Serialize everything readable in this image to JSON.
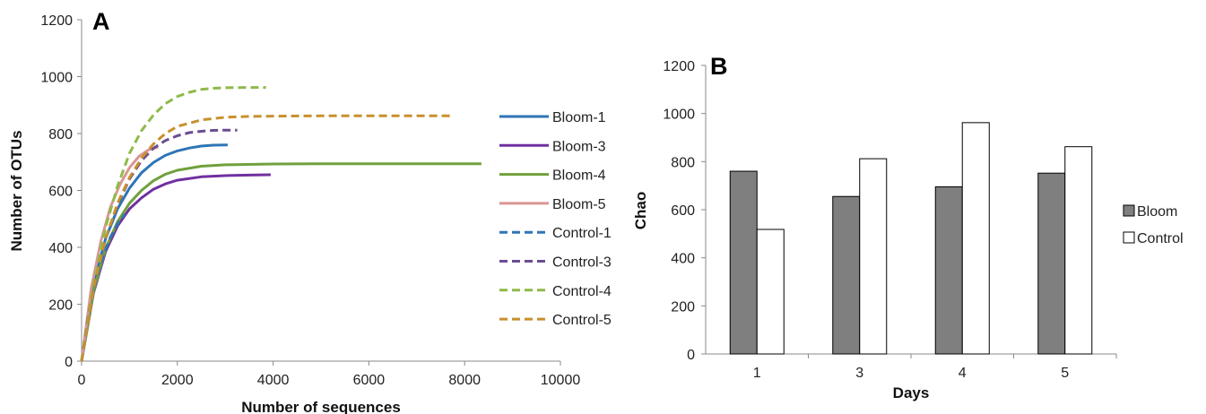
{
  "chart_data": [
    {
      "type": "line",
      "panel_label": "A",
      "xlabel": "Number of sequences",
      "ylabel": "Number of OTUs",
      "xlim": [
        0,
        10000
      ],
      "ylim": [
        0,
        1200
      ],
      "xticks": [
        "0",
        "2000",
        "4000",
        "6000",
        "8000",
        "10000"
      ],
      "yticks": [
        "0",
        "200",
        "400",
        "600",
        "800",
        "1000",
        "1200"
      ],
      "grid": false,
      "legend_position": "right",
      "series": [
        {
          "name": "Bloom-1",
          "color": "#2e75b6",
          "dash": "solid",
          "x": [
            0,
            250,
            500,
            750,
            1000,
            1250,
            1500,
            1750,
            2000,
            2250,
            2500,
            2750,
            3050
          ],
          "y": [
            0,
            270,
            430,
            535,
            608,
            662,
            698,
            723,
            739,
            749,
            756,
            759,
            760
          ]
        },
        {
          "name": "Bloom-3",
          "color": "#7030a0",
          "dash": "solid",
          "x": [
            0,
            250,
            500,
            750,
            1000,
            1250,
            1500,
            1750,
            2000,
            2500,
            3000,
            3500,
            3950
          ],
          "y": [
            0,
            240,
            385,
            475,
            535,
            574,
            604,
            623,
            636,
            648,
            652,
            654,
            655
          ]
        },
        {
          "name": "Bloom-4",
          "color": "#70a03c",
          "dash": "solid",
          "x": [
            0,
            250,
            500,
            750,
            1000,
            1250,
            1500,
            1750,
            2000,
            2500,
            3000,
            4000,
            5000,
            6000,
            7000,
            8350
          ],
          "y": [
            0,
            245,
            395,
            490,
            555,
            600,
            634,
            657,
            671,
            685,
            690,
            693,
            694,
            694,
            694,
            694
          ]
        },
        {
          "name": "Bloom-5",
          "color": "#d99694",
          "dash": "solid",
          "x": [
            0,
            200,
            400,
            600,
            800,
            1000,
            1200,
            1400,
            1600
          ],
          "y": [
            0,
            255,
            420,
            540,
            620,
            680,
            720,
            743,
            752
          ]
        },
        {
          "name": "Control-1",
          "color": "#2e75b6",
          "dash": "dashed",
          "x": [
            0,
            150,
            300,
            450,
            600,
            750,
            900
          ],
          "y": [
            0,
            170,
            285,
            370,
            435,
            482,
            517
          ]
        },
        {
          "name": "Control-3",
          "color": "#6a4c93",
          "dash": "dashed",
          "x": [
            0,
            250,
            500,
            750,
            1000,
            1250,
            1500,
            1750,
            2000,
            2250,
            2500,
            2750,
            3000,
            3250
          ],
          "y": [
            0,
            260,
            430,
            550,
            640,
            705,
            748,
            775,
            792,
            803,
            808,
            811,
            812,
            812
          ]
        },
        {
          "name": "Control-4",
          "color": "#8fba4a",
          "dash": "dashed",
          "x": [
            0,
            250,
            500,
            750,
            1000,
            1250,
            1500,
            1750,
            2000,
            2250,
            2500,
            2750,
            3000,
            3500,
            3850
          ],
          "y": [
            0,
            270,
            470,
            615,
            730,
            810,
            865,
            905,
            930,
            945,
            955,
            959,
            961,
            962,
            962
          ]
        },
        {
          "name": "Control-5",
          "color": "#c8902d",
          "dash": "dashed",
          "x": [
            0,
            250,
            500,
            750,
            1000,
            1250,
            1500,
            1750,
            2000,
            2500,
            3000,
            3500,
            4000,
            5000,
            6000,
            7000,
            7750
          ],
          "y": [
            0,
            255,
            430,
            555,
            645,
            713,
            763,
            800,
            825,
            848,
            857,
            860,
            861,
            862,
            862,
            862,
            862
          ]
        }
      ]
    },
    {
      "type": "bar",
      "panel_label": "B",
      "xlabel": "Days",
      "ylabel": "Chao",
      "ylim": [
        0,
        1200
      ],
      "yticks": [
        "0",
        "200",
        "400",
        "600",
        "800",
        "1000",
        "1200"
      ],
      "categories": [
        "1",
        "3",
        "4",
        "5"
      ],
      "grid": false,
      "legend_position": "right",
      "series": [
        {
          "name": "Bloom",
          "color": "#7f7f7f",
          "values": [
            760,
            655,
            695,
            752
          ]
        },
        {
          "name": "Control",
          "color": "#ffffff",
          "values": [
            518,
            812,
            962,
            862
          ]
        }
      ]
    }
  ]
}
